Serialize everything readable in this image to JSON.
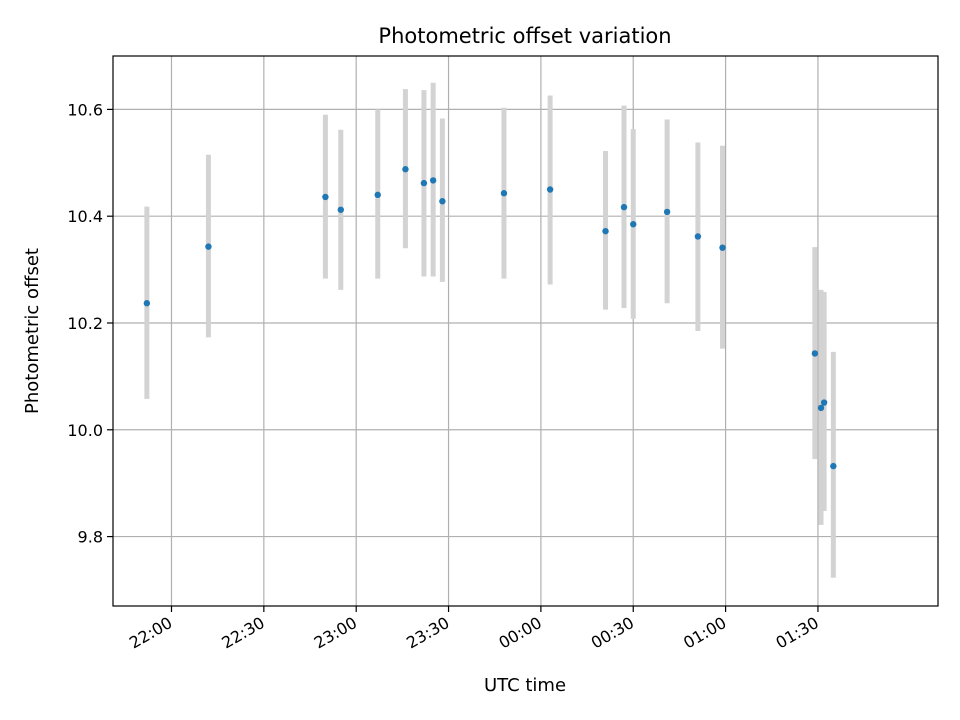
{
  "chart_data": {
    "type": "scatter",
    "title": "Photometric offset variation",
    "xlabel": "UTC time",
    "ylabel": "Photometric offset",
    "x_ticks": [
      "22:00",
      "22:30",
      "23:00",
      "23:30",
      "00:00",
      "00:30",
      "01:00",
      "01:30"
    ],
    "y_ticks": [
      "9.8",
      "10.0",
      "10.2",
      "10.4",
      "10.6"
    ],
    "xlim": [
      "21:41",
      "02:09"
    ],
    "ylim": [
      9.67,
      10.7
    ],
    "grid": true,
    "point_color": "#1f77b4",
    "errorbar_color": "#d3d3d3",
    "points": [
      {
        "x": "21:52",
        "y": 10.237,
        "lo": 10.058,
        "hi": 10.418
      },
      {
        "x": "22:12",
        "y": 10.343,
        "lo": 10.173,
        "hi": 10.515
      },
      {
        "x": "22:50",
        "y": 10.436,
        "lo": 10.283,
        "hi": 10.59
      },
      {
        "x": "22:55",
        "y": 10.412,
        "lo": 10.262,
        "hi": 10.562
      },
      {
        "x": "23:07",
        "y": 10.44,
        "lo": 10.283,
        "hi": 10.6
      },
      {
        "x": "23:16",
        "y": 10.488,
        "lo": 10.34,
        "hi": 10.638
      },
      {
        "x": "23:22",
        "y": 10.462,
        "lo": 10.287,
        "hi": 10.636
      },
      {
        "x": "23:25",
        "y": 10.467,
        "lo": 10.287,
        "hi": 10.65
      },
      {
        "x": "23:28",
        "y": 10.428,
        "lo": 10.277,
        "hi": 10.583
      },
      {
        "x": "23:48",
        "y": 10.443,
        "lo": 10.283,
        "hi": 10.603
      },
      {
        "x": "00:03",
        "y": 10.45,
        "lo": 10.272,
        "hi": 10.626
      },
      {
        "x": "00:21",
        "y": 10.372,
        "lo": 10.225,
        "hi": 10.522
      },
      {
        "x": "00:27",
        "y": 10.417,
        "lo": 10.228,
        "hi": 10.607
      },
      {
        "x": "00:30",
        "y": 10.385,
        "lo": 10.208,
        "hi": 10.563
      },
      {
        "x": "00:41",
        "y": 10.408,
        "lo": 10.237,
        "hi": 10.581
      },
      {
        "x": "00:51",
        "y": 10.362,
        "lo": 10.185,
        "hi": 10.538
      },
      {
        "x": "00:59",
        "y": 10.341,
        "lo": 10.152,
        "hi": 10.532
      },
      {
        "x": "01:29",
        "y": 10.143,
        "lo": 9.945,
        "hi": 10.342
      },
      {
        "x": "01:31",
        "y": 10.041,
        "lo": 9.822,
        "hi": 10.262
      },
      {
        "x": "01:32",
        "y": 10.051,
        "lo": 9.848,
        "hi": 10.258
      },
      {
        "x": "01:35",
        "y": 9.932,
        "lo": 9.723,
        "hi": 10.146
      }
    ]
  }
}
